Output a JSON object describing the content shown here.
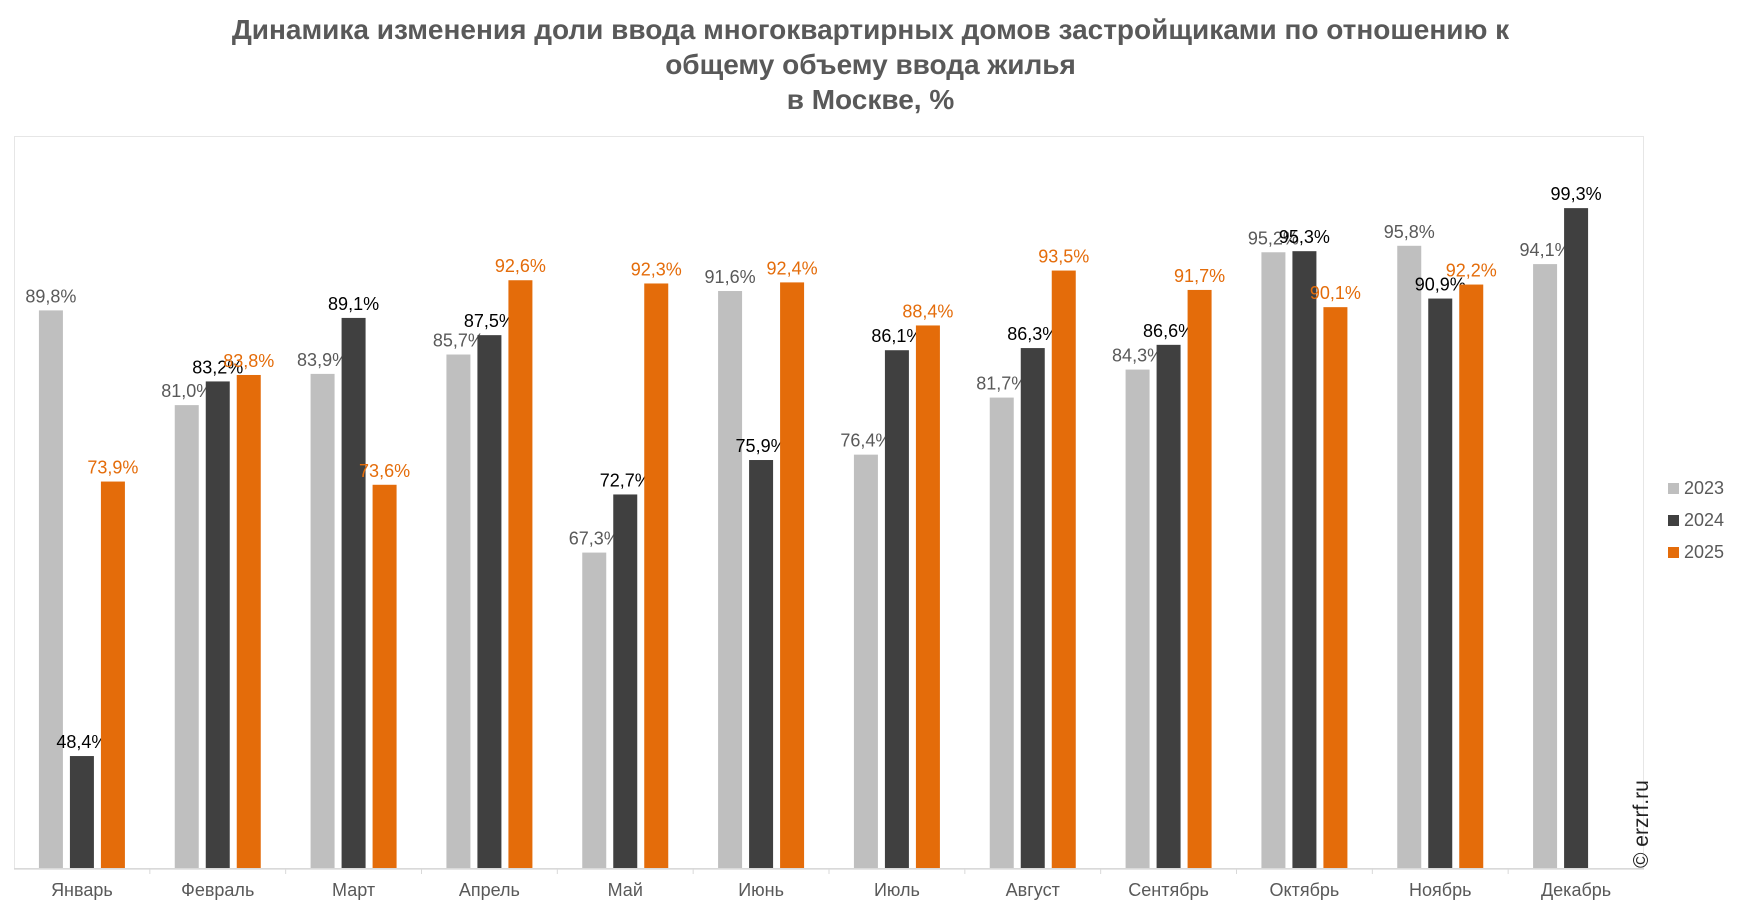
{
  "chart_data": {
    "type": "bar",
    "title_lines": [
      "Динамика изменения доли ввода многоквартирных домов застройщиками по отношению к",
      "общему объему ввода жилья",
      "в Москве, %"
    ],
    "categories": [
      "Январь",
      "Февраль",
      "Март",
      "Апрель",
      "Май",
      "Июнь",
      "Июль",
      "Август",
      "Сентябрь",
      "Октябрь",
      "Ноябрь",
      "Декабрь"
    ],
    "series": [
      {
        "name": "2023",
        "color": "#bfbfbf",
        "label_color": "#595959",
        "values": [
          89.8,
          81.0,
          83.9,
          85.7,
          67.3,
          91.6,
          76.4,
          81.7,
          84.3,
          95.2,
          95.8,
          94.1
        ],
        "labels": [
          "89,8%",
          "81,0%",
          "83,9%",
          "85,7%",
          "67,3%",
          "91,6%",
          "76,4%",
          "81,7%",
          "84,3%",
          "95,2%",
          "95,8%",
          "94,1%"
        ]
      },
      {
        "name": "2024",
        "color": "#404040",
        "label_color": "#000000",
        "values": [
          48.4,
          83.2,
          89.1,
          87.5,
          72.7,
          75.9,
          86.1,
          86.3,
          86.6,
          95.3,
          90.9,
          99.3
        ],
        "labels": [
          "48,4%",
          "83,2%",
          "89,1%",
          "87,5%",
          "72,7%",
          "75,9%",
          "86,1%",
          "86,3%",
          "86,6%",
          "95,3%",
          "90,9%",
          "99,3%"
        ]
      },
      {
        "name": "2025",
        "color": "#e46c0a",
        "label_color": "#e46c0a",
        "values": [
          73.9,
          83.8,
          73.6,
          92.6,
          92.3,
          92.4,
          88.4,
          93.5,
          91.7,
          90.1,
          92.2,
          null
        ],
        "labels": [
          "73,9%",
          "83,8%",
          "73,6%",
          "92,6%",
          "92,3%",
          "92,4%",
          "88,4%",
          "93,5%",
          "91,7%",
          "90,1%",
          "92,2%",
          null
        ]
      }
    ],
    "ylim": [
      38,
      106
    ],
    "grid": false,
    "legend_position": "right"
  },
  "credit": "© erzrf.ru"
}
